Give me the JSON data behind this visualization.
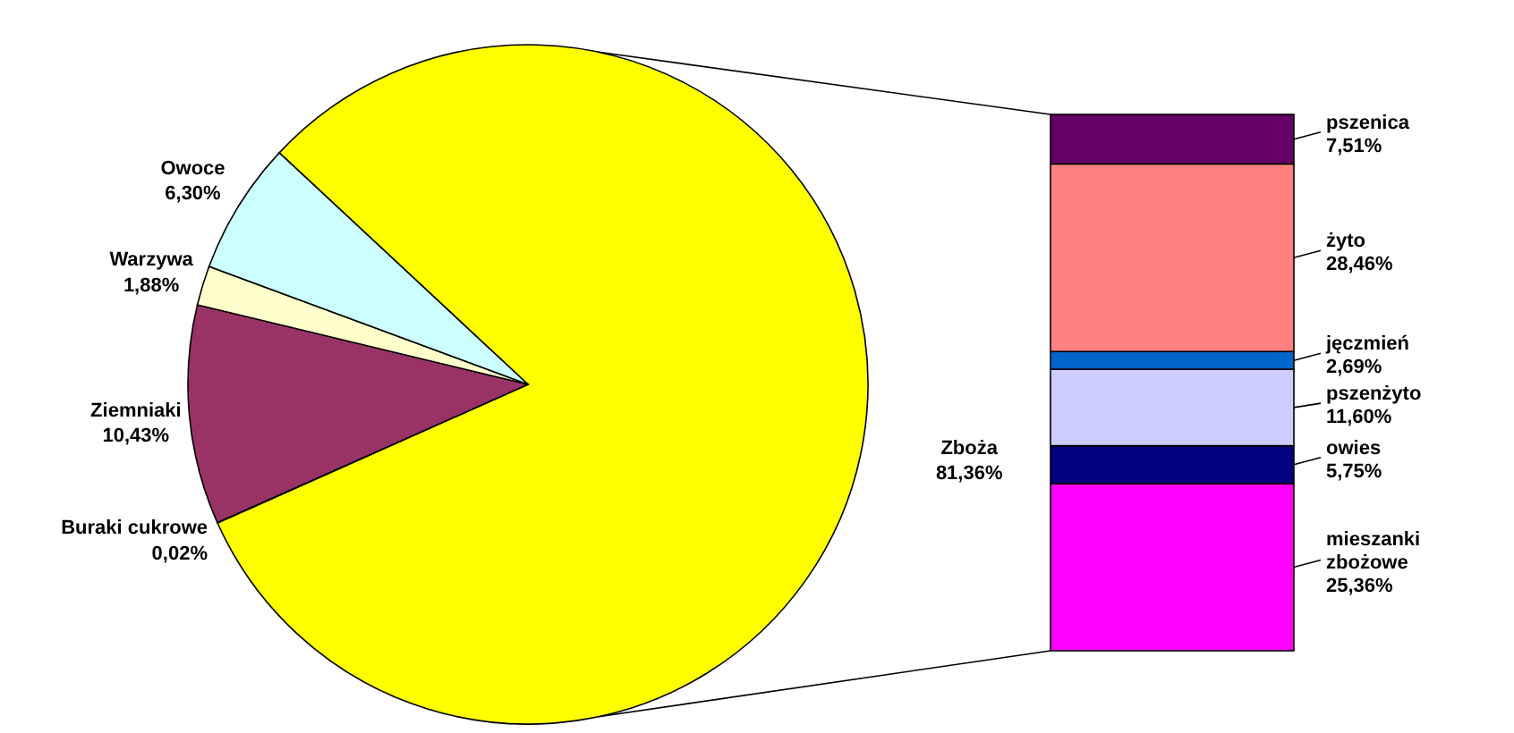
{
  "chart_data": [
    {
      "type": "pie",
      "categories": [
        "Zboża",
        "Buraki cukrowe",
        "Ziemniaki",
        "Warzywa",
        "Owoce"
      ],
      "values": [
        81.36,
        0.02,
        10.43,
        1.88,
        6.3
      ],
      "colors": [
        "#ffff00",
        "#ff9900",
        "#993366",
        "#ffffcc",
        "#ccffff"
      ],
      "value_labels": [
        "81,36%",
        "0,02%",
        "10,43%",
        "1,88%",
        "6,30%"
      ]
    },
    {
      "type": "bar",
      "stacked": true,
      "categories": [
        null
      ],
      "series": [
        {
          "name": "mieszanki zbożowe",
          "color": "#ff00ff",
          "values": [
            25.36
          ],
          "value_labels": [
            "25,36%"
          ]
        },
        {
          "name": "owies",
          "color": "#000080",
          "values": [
            5.75
          ],
          "value_labels": [
            "5,75%"
          ]
        },
        {
          "name": "pszenżyto",
          "color": "#ccccff",
          "values": [
            11.6
          ],
          "value_labels": [
            "11,60%"
          ]
        },
        {
          "name": "jęczmień",
          "color": "#0066cc",
          "values": [
            2.69
          ],
          "value_labels": [
            "2,69%"
          ]
        },
        {
          "name": "żyto",
          "color": "#ff8080",
          "values": [
            28.46
          ],
          "value_labels": [
            "28,46%"
          ]
        },
        {
          "name": "pszenica",
          "color": "#660066",
          "values": [
            7.51
          ],
          "value_labels": [
            "7,51%"
          ]
        }
      ]
    }
  ]
}
